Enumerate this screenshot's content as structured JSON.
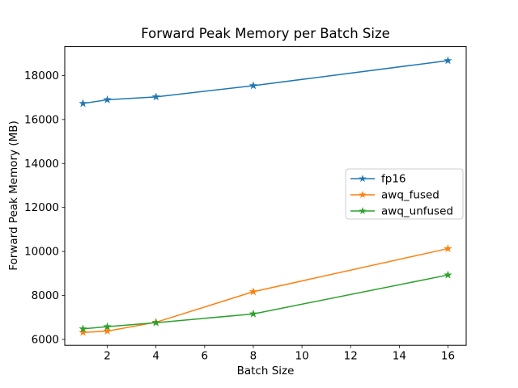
{
  "chart_data": {
    "type": "line",
    "title": "Forward Peak Memory per Batch Size",
    "xlabel": "Batch Size",
    "ylabel": "Forward Peak Memory (MB)",
    "x": [
      1,
      2,
      4,
      8,
      16
    ],
    "series": [
      {
        "name": "fp16",
        "color": "#1f77b4",
        "values": [
          16730,
          16900,
          17030,
          17540,
          18680
        ]
      },
      {
        "name": "awq_fused",
        "color": "#ff7f0e",
        "values": [
          6320,
          6380,
          6780,
          8170,
          10130
        ]
      },
      {
        "name": "awq_unfused",
        "color": "#2ca02c",
        "values": [
          6480,
          6580,
          6760,
          7160,
          8930
        ]
      }
    ],
    "marker": "star",
    "line_width": 1.5,
    "xticks": [
      2,
      4,
      6,
      8,
      10,
      12,
      14,
      16
    ],
    "yticks": [
      6000,
      8000,
      10000,
      12000,
      14000,
      16000,
      18000
    ],
    "xlim": [
      0.25,
      16.75
    ],
    "ylim": [
      5732,
      19318
    ],
    "grid": false,
    "legend_position": "center right",
    "legend_border_color": "#cccccc",
    "axis_color": "#000000",
    "background_color": "#ffffff"
  }
}
